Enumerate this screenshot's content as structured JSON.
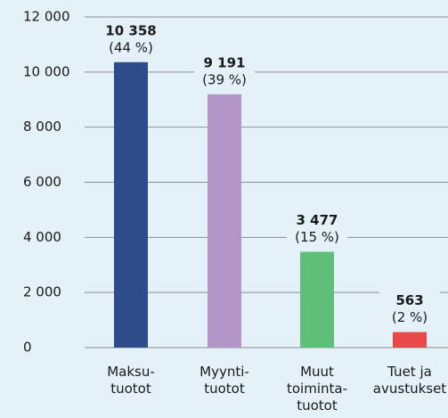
{
  "chart_data": {
    "type": "bar",
    "categories": [
      "Maksu-\ntuotot",
      "Myynti-\ntuotot",
      "Muut\ntoiminta-\ntuotot",
      "Tuet ja\navustukset"
    ],
    "values": [
      10358,
      9191,
      3477,
      563
    ],
    "value_labels": [
      "10 358",
      "9 191",
      "3 477",
      "563"
    ],
    "shares": [
      44,
      39,
      15,
      2
    ],
    "share_labels": [
      "(44 %)",
      "(39 %)",
      "(15 %)",
      "(2 %)"
    ],
    "colors": [
      "#2f4c8a",
      "#b396c7",
      "#5ebf78",
      "#e84848"
    ],
    "ylim": [
      0,
      12000
    ],
    "yticks": [
      0,
      {
        "value": 2000,
        "label": "2 000"
      },
      {
        "value": 4000,
        "label": "4 000"
      },
      {
        "value": 6000,
        "label": "6 000"
      },
      {
        "value": 8000,
        "label": "8 000"
      },
      {
        "value": 10000,
        "label": "10 000"
      },
      {
        "value": 12000,
        "label": "12 000"
      }
    ],
    "grid": true
  }
}
